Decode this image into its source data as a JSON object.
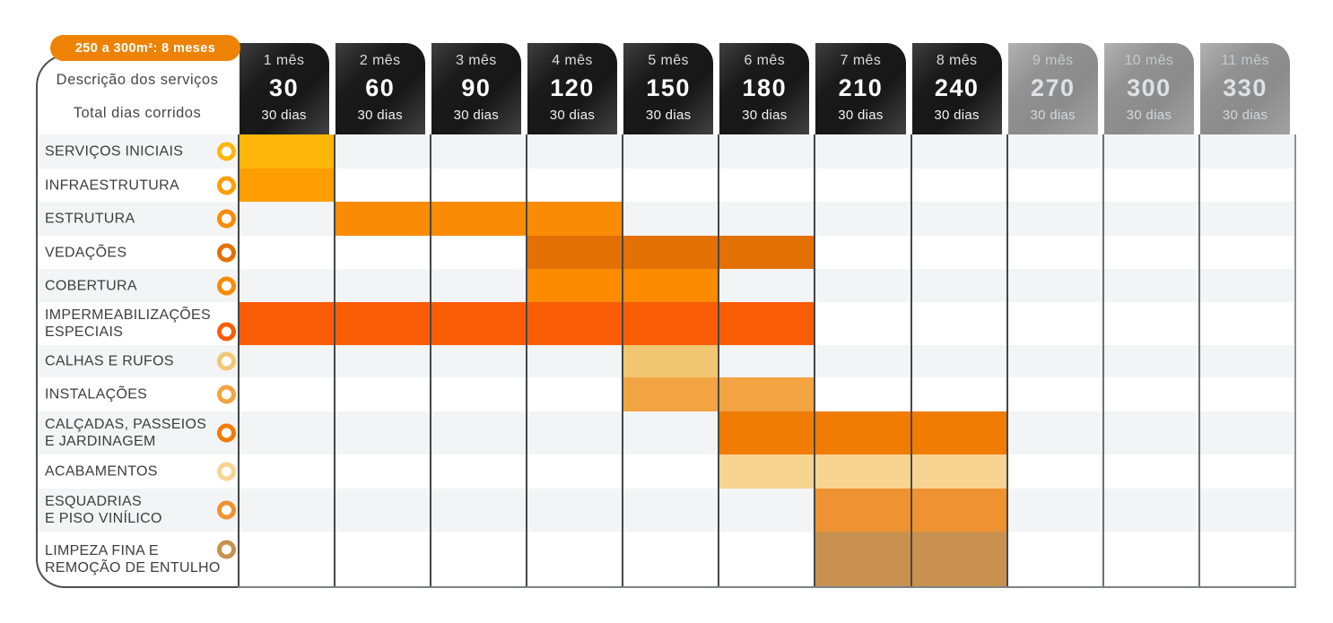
{
  "badge": {
    "text": "250 a 300m²: 8 meses",
    "color": "#EE8205"
  },
  "left_panel": {
    "line1": "Descrição dos serviços",
    "line2": "Total dias corridos"
  },
  "columns": [
    {
      "label": "1 mês",
      "total": "30",
      "days": "30 dias",
      "theme": "dark"
    },
    {
      "label": "2 mês",
      "total": "60",
      "days": "30 dias",
      "theme": "dark"
    },
    {
      "label": "3 mês",
      "total": "90",
      "days": "30 dias",
      "theme": "dark"
    },
    {
      "label": "4 mês",
      "total": "120",
      "days": "30 dias",
      "theme": "dark"
    },
    {
      "label": "5 mês",
      "total": "150",
      "days": "30 dias",
      "theme": "dark"
    },
    {
      "label": "6 mês",
      "total": "180",
      "days": "30 dias",
      "theme": "dark"
    },
    {
      "label": "7 mês",
      "total": "210",
      "days": "30 dias",
      "theme": "dark"
    },
    {
      "label": "8 mês",
      "total": "240",
      "days": "30 dias",
      "theme": "dark"
    },
    {
      "label": "9 mês",
      "total": "270",
      "days": "30 dias",
      "theme": "gray"
    },
    {
      "label": "10 mês",
      "total": "300",
      "days": "30 dias",
      "theme": "gray"
    },
    {
      "label": "11 mês",
      "total": "330",
      "days": "30 dias",
      "theme": "gray"
    }
  ],
  "rows": [
    {
      "label": "SERVIÇOS INICIAIS",
      "color": "#FFB60A",
      "start_month": 1,
      "end_month": 1
    },
    {
      "label": "INFRAESTRUTURA",
      "color": "#FE9E03",
      "start_month": 1,
      "end_month": 1
    },
    {
      "label": "ESTRUTURA",
      "color": "#FA8B05",
      "start_month": 2,
      "end_month": 4
    },
    {
      "label": "VEDAÇÕES",
      "color": "#E27005",
      "start_month": 4,
      "end_month": 6
    },
    {
      "label": "COBERTURA",
      "color": "#FC8B00",
      "start_month": 4,
      "end_month": 5
    },
    {
      "label": "IMPERMEABILIZAÇÕES\nESPECIAIS",
      "color": "#FA5D08",
      "start_month": 1,
      "end_month": 6
    },
    {
      "label": "CALHAS E RUFOS",
      "color": "#F1C773",
      "start_month": 5,
      "end_month": 5
    },
    {
      "label": "INSTALAÇÕES",
      "color": "#F1A441",
      "start_month": 5,
      "end_month": 6
    },
    {
      "label": "CALÇADAS, PASSEIOS\nE JARDINAGEM",
      "color": "#F07C04",
      "start_month": 6,
      "end_month": 8
    },
    {
      "label": "ACABAMENTOS",
      "color": "#F8D492",
      "start_month": 6,
      "end_month": 8
    },
    {
      "label": "ESQUADRIAS\nE PISO VINÍLICO",
      "color": "#EF9231",
      "start_month": 7,
      "end_month": 8
    },
    {
      "label": "LIMPEZA FINA E\nREMOÇÃO DE ENTULHO",
      "color": "#C9914F",
      "start_month": 7,
      "end_month": 8
    }
  ],
  "chart_data": {
    "type": "bar",
    "subtype": "gantt",
    "title": "250 a 300m²: 8 meses",
    "x_categories": [
      "1 mês",
      "2 mês",
      "3 mês",
      "4 mês",
      "5 mês",
      "6 mês",
      "7 mês",
      "8 mês",
      "9 mês",
      "10 mês",
      "11 mês"
    ],
    "x_cumulative_days": [
      30,
      60,
      90,
      120,
      150,
      180,
      210,
      240,
      270,
      300,
      330
    ],
    "days_per_month": 30,
    "active_months": 8,
    "inactive_months": [
      9,
      10,
      11
    ],
    "ylabel": "Descrição dos serviços",
    "xlabel": "Total dias corridos",
    "grid": true,
    "series": [
      {
        "name": "SERVIÇOS INICIAIS",
        "start_month": 1,
        "end_month": 1,
        "color": "#FFB60A"
      },
      {
        "name": "INFRAESTRUTURA",
        "start_month": 1,
        "end_month": 1,
        "color": "#FE9E03"
      },
      {
        "name": "ESTRUTURA",
        "start_month": 2,
        "end_month": 4,
        "color": "#FA8B05"
      },
      {
        "name": "VEDAÇÕES",
        "start_month": 4,
        "end_month": 6,
        "color": "#E27005"
      },
      {
        "name": "COBERTURA",
        "start_month": 4,
        "end_month": 5,
        "color": "#FC8B00"
      },
      {
        "name": "IMPERMEABILIZAÇÕES ESPECIAIS",
        "start_month": 1,
        "end_month": 6,
        "color": "#FA5D08"
      },
      {
        "name": "CALHAS E RUFOS",
        "start_month": 5,
        "end_month": 5,
        "color": "#F1C773"
      },
      {
        "name": "INSTALAÇÕES",
        "start_month": 5,
        "end_month": 6,
        "color": "#F1A441"
      },
      {
        "name": "CALÇADAS, PASSEIOS E JARDINAGEM",
        "start_month": 6,
        "end_month": 8,
        "color": "#F07C04"
      },
      {
        "name": "ACABAMENTOS",
        "start_month": 6,
        "end_month": 8,
        "color": "#F8D492"
      },
      {
        "name": "ESQUADRIAS E PISO VINÍLICO",
        "start_month": 7,
        "end_month": 8,
        "color": "#EF9231"
      },
      {
        "name": "LIMPEZA FINA E REMOÇÃO DE ENTULHO",
        "start_month": 7,
        "end_month": 8,
        "color": "#C9914F"
      }
    ]
  }
}
